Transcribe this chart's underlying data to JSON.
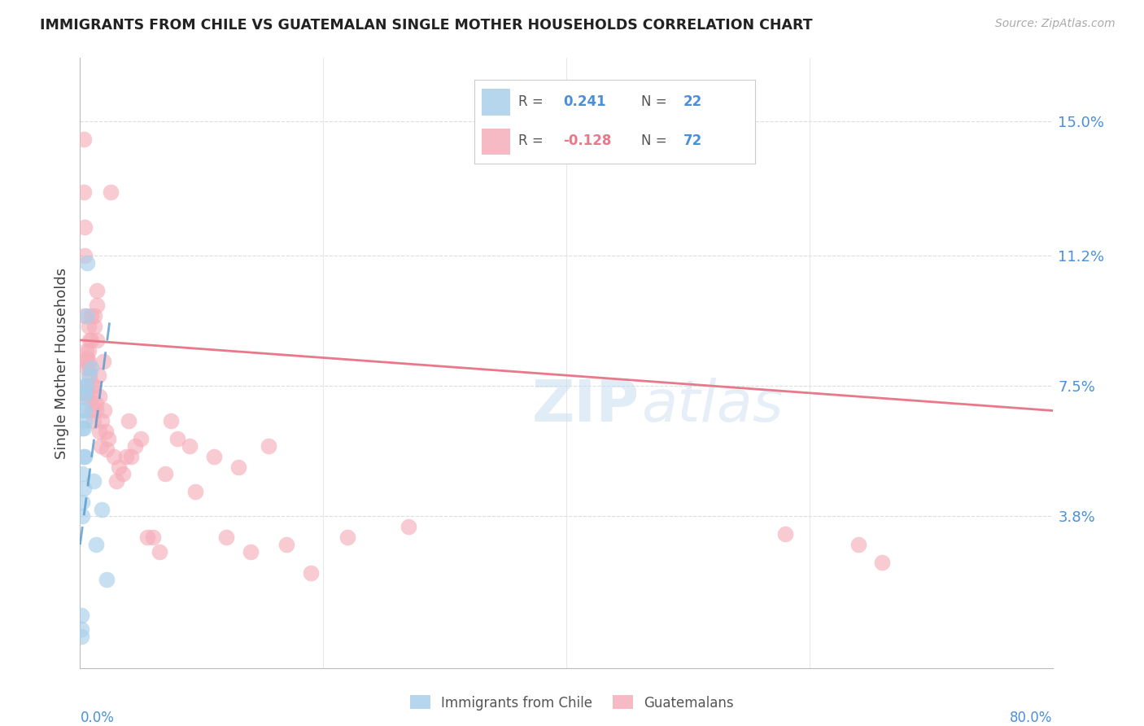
{
  "title": "IMMIGRANTS FROM CHILE VS GUATEMALAN SINGLE MOTHER HOUSEHOLDS CORRELATION CHART",
  "source": "Source: ZipAtlas.com",
  "ylabel": "Single Mother Households",
  "ytick_labels": [
    "15.0%",
    "11.2%",
    "7.5%",
    "3.8%"
  ],
  "ytick_values": [
    0.15,
    0.112,
    0.075,
    0.038
  ],
  "xlim": [
    0.0,
    0.8
  ],
  "ylim": [
    -0.005,
    0.168
  ],
  "blue_color": "#A8CFEA",
  "pink_color": "#F5AEBA",
  "blue_line_color": "#5599CC",
  "pink_line_color": "#E8788A",
  "grid_color": "#DDDDDD",
  "blue_scatter_x": [
    0.001,
    0.001,
    0.001,
    0.002,
    0.002,
    0.002,
    0.002,
    0.002,
    0.003,
    0.003,
    0.003,
    0.003,
    0.003,
    0.004,
    0.004,
    0.004,
    0.004,
    0.005,
    0.005,
    0.006,
    0.007,
    0.009,
    0.011,
    0.013,
    0.018,
    0.022
  ],
  "blue_scatter_y": [
    0.01,
    0.006,
    0.004,
    0.068,
    0.063,
    0.05,
    0.042,
    0.038,
    0.075,
    0.072,
    0.063,
    0.055,
    0.046,
    0.073,
    0.068,
    0.065,
    0.055,
    0.095,
    0.075,
    0.11,
    0.078,
    0.08,
    0.048,
    0.03,
    0.04,
    0.02
  ],
  "pink_scatter_x": [
    0.003,
    0.003,
    0.004,
    0.004,
    0.004,
    0.005,
    0.005,
    0.005,
    0.005,
    0.006,
    0.006,
    0.006,
    0.007,
    0.007,
    0.007,
    0.008,
    0.008,
    0.008,
    0.009,
    0.009,
    0.01,
    0.01,
    0.01,
    0.011,
    0.011,
    0.012,
    0.012,
    0.013,
    0.013,
    0.014,
    0.014,
    0.014,
    0.015,
    0.016,
    0.016,
    0.017,
    0.018,
    0.019,
    0.02,
    0.021,
    0.022,
    0.023,
    0.025,
    0.028,
    0.03,
    0.032,
    0.035,
    0.038,
    0.04,
    0.042,
    0.045,
    0.05,
    0.055,
    0.06,
    0.065,
    0.07,
    0.075,
    0.08,
    0.09,
    0.095,
    0.11,
    0.12,
    0.13,
    0.14,
    0.155,
    0.17,
    0.19,
    0.22,
    0.27,
    0.58,
    0.64,
    0.66
  ],
  "pink_scatter_y": [
    0.145,
    0.13,
    0.12,
    0.112,
    0.095,
    0.085,
    0.082,
    0.073,
    0.072,
    0.083,
    0.08,
    0.075,
    0.092,
    0.085,
    0.082,
    0.088,
    0.08,
    0.078,
    0.095,
    0.088,
    0.075,
    0.072,
    0.068,
    0.065,
    0.075,
    0.095,
    0.092,
    0.068,
    0.07,
    0.102,
    0.098,
    0.088,
    0.078,
    0.072,
    0.062,
    0.058,
    0.065,
    0.082,
    0.068,
    0.062,
    0.057,
    0.06,
    0.13,
    0.055,
    0.048,
    0.052,
    0.05,
    0.055,
    0.065,
    0.055,
    0.058,
    0.06,
    0.032,
    0.032,
    0.028,
    0.05,
    0.065,
    0.06,
    0.058,
    0.045,
    0.055,
    0.032,
    0.052,
    0.028,
    0.058,
    0.03,
    0.022,
    0.032,
    0.035,
    0.033,
    0.03,
    0.025
  ],
  "blue_trendline_x": [
    0.0,
    0.025
  ],
  "blue_trendline_y": [
    0.03,
    0.095
  ],
  "pink_trendline_x": [
    0.0,
    0.8
  ],
  "pink_trendline_y": [
    0.088,
    0.068
  ],
  "legend_text_color": "#555555",
  "r_value_blue_color": "#4A90D9",
  "r_value_pink_color": "#E8788A",
  "n_value_color": "#4A90D9",
  "watermark_color": "#DDEEFF"
}
